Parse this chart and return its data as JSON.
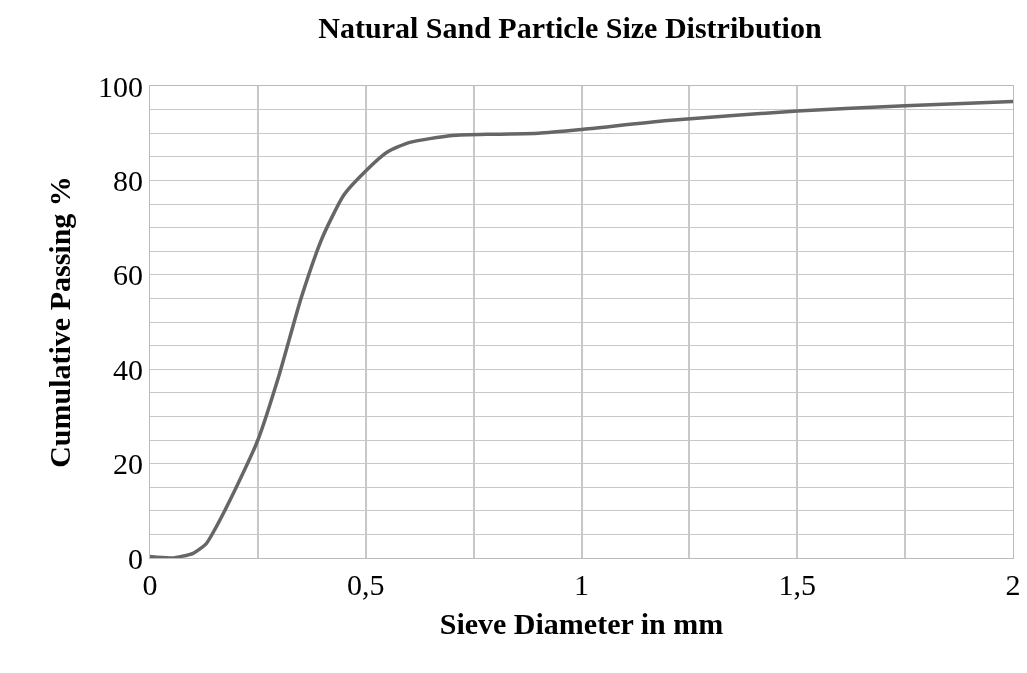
{
  "chart_data": {
    "type": "line",
    "title": "Natural Sand Particle Size Distribution",
    "xlabel": "Sieve Diameter in mm",
    "ylabel": "Cumulative Passing %",
    "x": [
      0,
      0.05,
      0.1,
      0.13,
      0.15,
      0.2,
      0.25,
      0.3,
      0.35,
      0.4,
      0.45,
      0.5,
      0.55,
      0.6,
      0.7,
      0.8,
      0.9,
      1,
      1.2,
      1.5,
      1.75,
      2
    ],
    "series": [
      {
        "color": "#666666",
        "values": [
          0.3,
          0,
          1,
          3,
          6,
          15,
          25,
          39,
          55,
          68,
          77,
          82,
          86,
          88,
          89.5,
          89.8,
          90,
          90.8,
          92.7,
          94.7,
          95.8,
          96.7
        ]
      }
    ],
    "xlim": [
      0,
      2
    ],
    "ylim": [
      0,
      100
    ],
    "xticks": [
      0,
      {
        "value": 0.25,
        "label": null
      },
      {
        "value": 0.5,
        "label": "0,5"
      },
      {
        "value": 0.75,
        "label": null
      },
      1,
      {
        "value": 1.25,
        "label": null
      },
      {
        "value": 1.5,
        "label": "1,5"
      },
      {
        "value": 1.75,
        "label": null
      },
      2
    ],
    "yticks": [
      0,
      {
        "value": 5,
        "label": null
      },
      {
        "value": 10,
        "label": null
      },
      {
        "value": 15,
        "label": null
      },
      20,
      {
        "value": 25,
        "label": null
      },
      {
        "value": 30,
        "label": null
      },
      {
        "value": 35,
        "label": null
      },
      40,
      {
        "value": 45,
        "label": null
      },
      {
        "value": 50,
        "label": null
      },
      {
        "value": 55,
        "label": null
      },
      60,
      {
        "value": 65,
        "label": null
      },
      {
        "value": 70,
        "label": null
      },
      {
        "value": 75,
        "label": null
      },
      80,
      {
        "value": 85,
        "label": null
      },
      {
        "value": 90,
        "label": null
      },
      {
        "value": 95,
        "label": null
      },
      100
    ],
    "grid": true,
    "marker": "none",
    "line_style": "solid"
  }
}
